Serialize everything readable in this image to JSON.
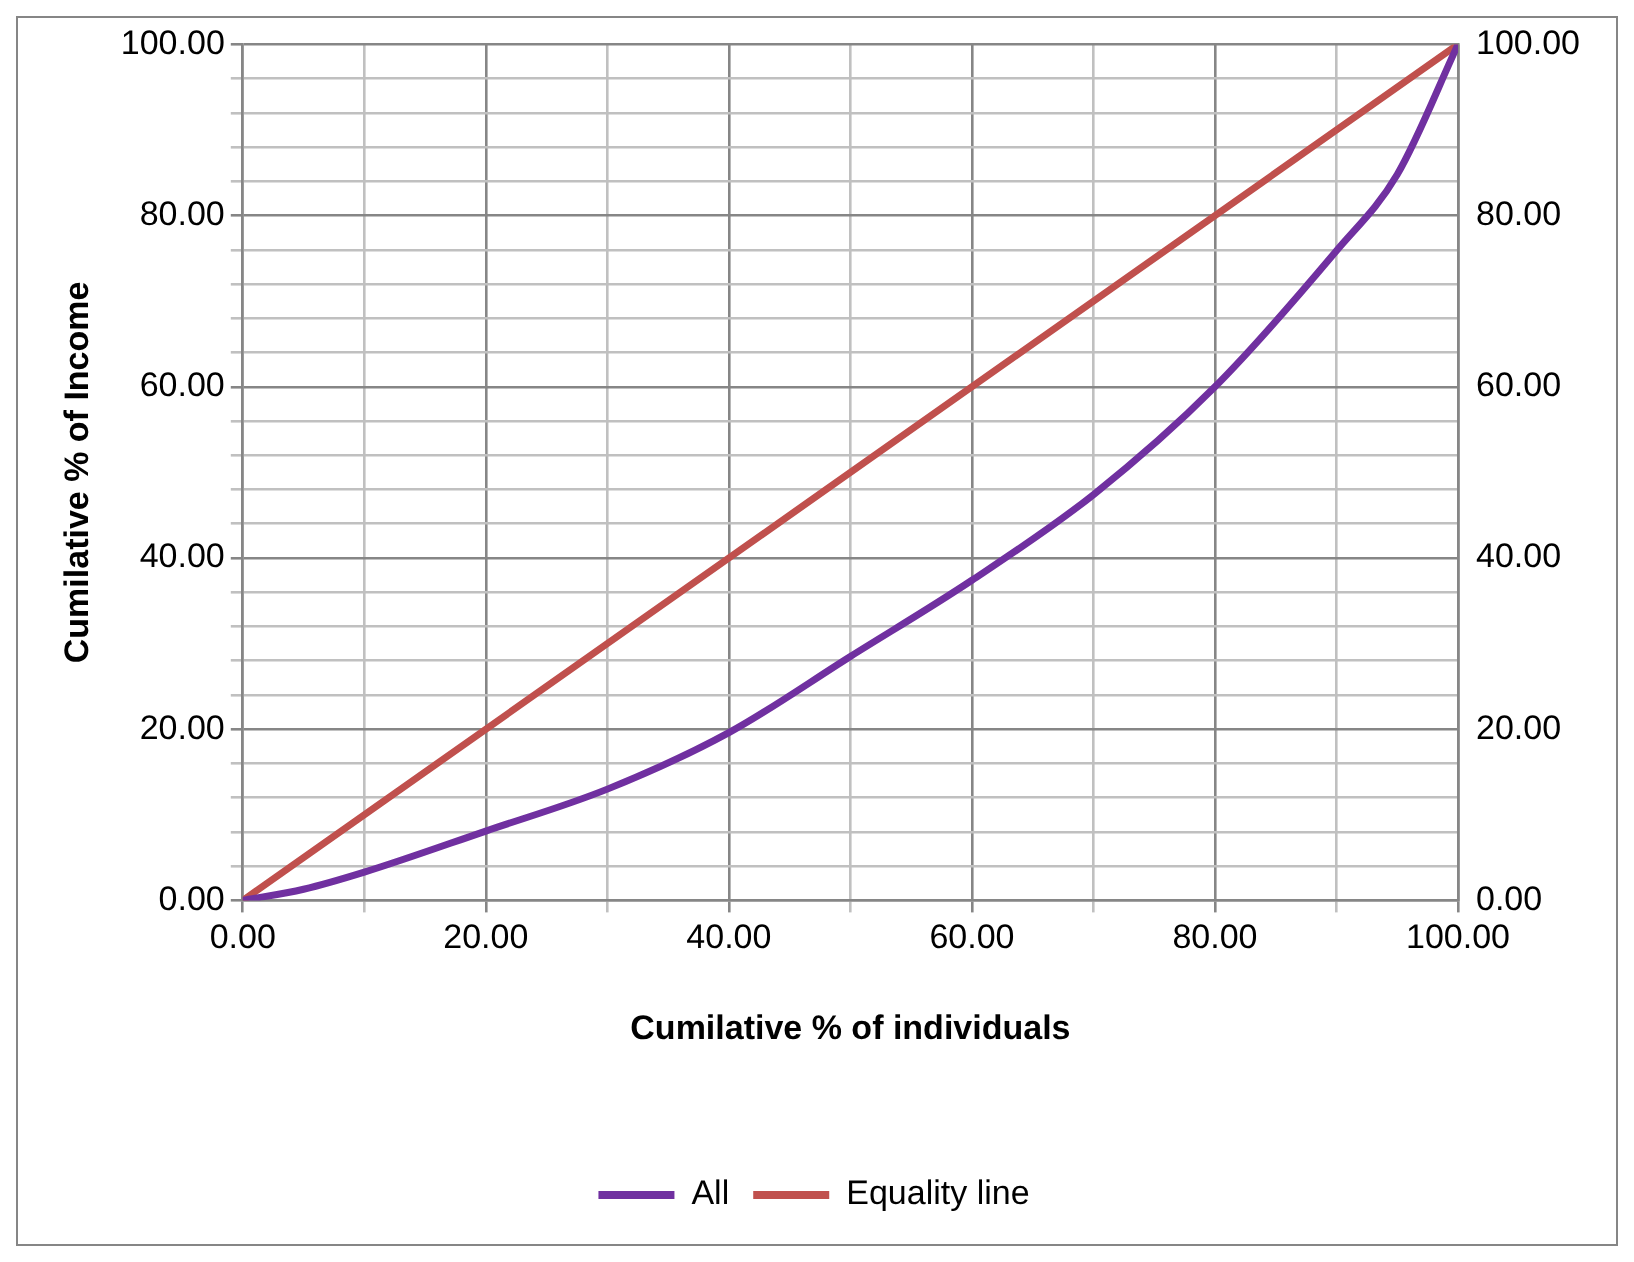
{
  "chart_data": {
    "type": "line",
    "xlabel": "Cumilative % of individuals",
    "ylabel": "Cumilative % of Income",
    "series": [
      {
        "name": "All",
        "color": "#7030a0",
        "x": [
          0,
          5,
          10,
          20,
          30,
          40,
          50,
          60,
          70,
          80,
          90,
          95,
          100
        ],
        "values": [
          0,
          1.3,
          3.3,
          8.1,
          13,
          19.6,
          28.5,
          37.4,
          47.4,
          60,
          75.9,
          84.8,
          100
        ]
      },
      {
        "name": "Equality line",
        "color": "#c0504d",
        "x": [
          0,
          100
        ],
        "values": [
          0,
          100
        ]
      }
    ],
    "xlim": [
      0,
      100
    ],
    "xticks": [
      {
        "value": 0,
        "label": "0.00"
      },
      {
        "value": 10,
        "label": null
      },
      {
        "value": 20,
        "label": "20.00"
      },
      {
        "value": 30,
        "label": null
      },
      {
        "value": 40,
        "label": "40.00"
      },
      {
        "value": 50,
        "label": null
      },
      {
        "value": 60,
        "label": "60.00"
      },
      {
        "value": 70,
        "label": null
      },
      {
        "value": 80,
        "label": "80.00"
      },
      {
        "value": 90,
        "label": null
      },
      {
        "value": 100,
        "label": "100.00"
      }
    ],
    "ylim": [
      0,
      100
    ],
    "yticks": [
      {
        "value": 0,
        "label": "0.00"
      },
      {
        "value": 4,
        "label": null
      },
      {
        "value": 8,
        "label": null
      },
      {
        "value": 12,
        "label": null
      },
      {
        "value": 16,
        "label": null
      },
      {
        "value": 20,
        "label": "20.00"
      },
      {
        "value": 24,
        "label": null
      },
      {
        "value": 28,
        "label": null
      },
      {
        "value": 32,
        "label": null
      },
      {
        "value": 36,
        "label": null
      },
      {
        "value": 40,
        "label": "40.00"
      },
      {
        "value": 44,
        "label": null
      },
      {
        "value": 48,
        "label": null
      },
      {
        "value": 52,
        "label": null
      },
      {
        "value": 56,
        "label": null
      },
      {
        "value": 60,
        "label": "60.00"
      },
      {
        "value": 64,
        "label": null
      },
      {
        "value": 68,
        "label": null
      },
      {
        "value": 72,
        "label": null
      },
      {
        "value": 76,
        "label": null
      },
      {
        "value": 80,
        "label": "80.00"
      },
      {
        "value": 84,
        "label": null
      },
      {
        "value": 88,
        "label": null
      },
      {
        "value": 92,
        "label": null
      },
      {
        "value": 96,
        "label": null
      },
      {
        "value": 100,
        "label": "100.00"
      }
    ],
    "y2lim": [
      0,
      100
    ],
    "y2ticks": [
      {
        "value": 0,
        "label": "0.00"
      },
      {
        "value": 20,
        "label": "20.00"
      },
      {
        "value": 40,
        "label": "40.00"
      },
      {
        "value": 60,
        "label": "60.00"
      },
      {
        "value": 80,
        "label": "80.00"
      },
      {
        "value": 100,
        "label": "100.00"
      }
    ],
    "grid": true,
    "legend": "bottom",
    "marker": "none",
    "line_style": "solid"
  }
}
